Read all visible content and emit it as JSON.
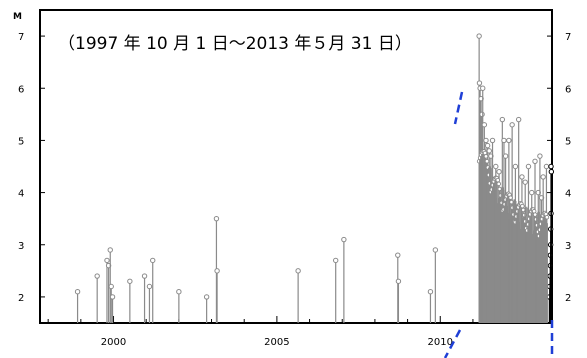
{
  "chart_data": {
    "type": "stem",
    "title": "（1997 年 10 月 1 日～2013 年５月 31 日）",
    "ylabel": "M",
    "xlim": [
      1997.75,
      2013.42
    ],
    "ylim": [
      1.5,
      7.5
    ],
    "x_ticks": [
      "2000",
      "2005",
      "2010"
    ],
    "x_tick_values": [
      2000,
      2005,
      2010
    ],
    "y_ticks": [
      "2",
      "3",
      "4",
      "5",
      "6",
      "7"
    ],
    "y_tick_values": [
      2,
      3,
      4,
      5,
      6,
      7
    ],
    "grid": false,
    "colors": {
      "gray_series": "#8a8a8a",
      "black_series": "#000000",
      "dashed_line": "#1f3fd6"
    },
    "series": [
      {
        "color": "gray",
        "points": [
          [
            1998.9,
            2.1
          ],
          [
            1999.5,
            2.4
          ],
          [
            1999.8,
            2.7
          ],
          [
            1999.85,
            2.6
          ],
          [
            1999.9,
            2.9
          ],
          [
            1999.93,
            2.2
          ],
          [
            1999.97,
            2.0
          ],
          [
            2000.5,
            2.3
          ],
          [
            2000.95,
            2.4
          ],
          [
            2001.1,
            2.2
          ],
          [
            2001.2,
            2.7
          ],
          [
            2002.0,
            2.1
          ],
          [
            2002.85,
            2.0
          ],
          [
            2003.15,
            3.5
          ],
          [
            2003.17,
            2.5
          ],
          [
            2005.65,
            2.5
          ],
          [
            2006.8,
            2.7
          ],
          [
            2007.05,
            3.1
          ],
          [
            2008.7,
            2.8
          ],
          [
            2008.72,
            2.3
          ],
          [
            2009.7,
            2.1
          ],
          [
            2009.85,
            2.9
          ],
          [
            2011.19,
            7.0
          ],
          [
            2011.2,
            6.1
          ],
          [
            2011.22,
            6.0
          ],
          [
            2011.25,
            5.8
          ],
          [
            2011.28,
            5.5
          ],
          [
            2011.3,
            6.0
          ],
          [
            2011.35,
            5.3
          ],
          [
            2011.4,
            5.0
          ],
          [
            2011.45,
            4.9
          ],
          [
            2011.5,
            4.8
          ],
          [
            2011.55,
            4.7
          ],
          [
            2011.6,
            5.0
          ],
          [
            2011.7,
            4.5
          ],
          [
            2011.8,
            4.4
          ],
          [
            2011.9,
            5.4
          ],
          [
            2011.95,
            5.0
          ],
          [
            2012.0,
            4.7
          ],
          [
            2012.1,
            5.0
          ],
          [
            2012.2,
            5.3
          ],
          [
            2012.3,
            4.5
          ],
          [
            2012.4,
            5.4
          ],
          [
            2012.5,
            4.3
          ],
          [
            2012.6,
            4.2
          ],
          [
            2012.7,
            4.5
          ],
          [
            2012.8,
            4.0
          ],
          [
            2012.9,
            4.6
          ],
          [
            2013.0,
            4.0
          ],
          [
            2013.05,
            4.7
          ],
          [
            2013.1,
            3.9
          ],
          [
            2013.15,
            4.3
          ],
          [
            2013.2,
            3.5
          ],
          [
            2013.25,
            4.5
          ]
        ]
      },
      {
        "color": "black",
        "points": [
          [
            2013.34,
            2.0
          ],
          [
            2013.35,
            2.2
          ],
          [
            2013.36,
            2.4
          ],
          [
            2013.37,
            2.6
          ],
          [
            2013.37,
            2.8
          ],
          [
            2013.38,
            3.0
          ],
          [
            2013.38,
            3.3
          ],
          [
            2013.39,
            3.6
          ],
          [
            2013.39,
            4.5
          ],
          [
            2013.4,
            4.4
          ]
        ]
      }
    ]
  }
}
